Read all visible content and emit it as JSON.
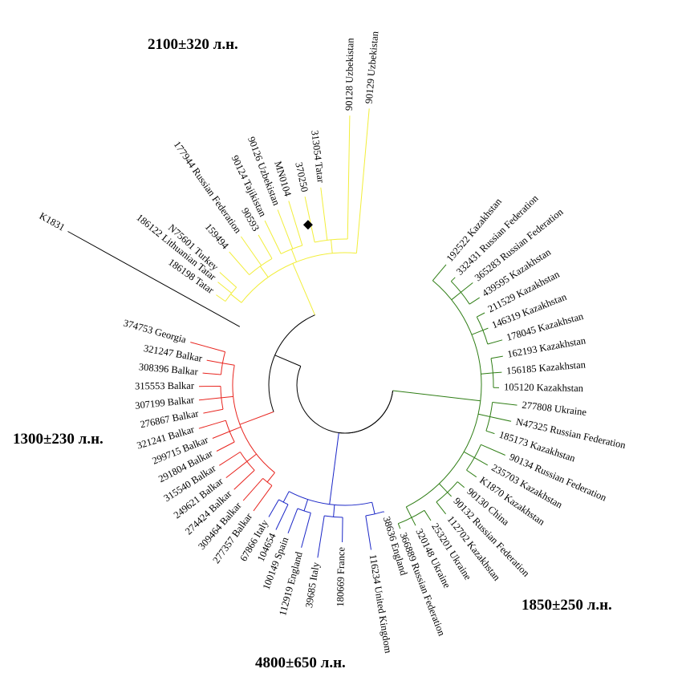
{
  "colors": {
    "background": "#ffffff",
    "root": "#000000",
    "yellow_clade": "#f2ee3a",
    "red_clade": "#e8251f",
    "green_clade": "#2e7d14",
    "blue_clade": "#1b27c7"
  },
  "dates": {
    "yellow": "2100±320 л.н.",
    "red": "1300±230 л.н.",
    "green": "1850±250 л.н.",
    "blue": "4800±650 л.н."
  },
  "marker": "diamond",
  "clades": {
    "outgroup": [
      "K1831"
    ],
    "yellow": [
      "186198 Tatar",
      "186122 Lithuanian Tatar",
      "N75601 Turkey",
      "159494",
      "177944 Russian Federation",
      "90593",
      "90124 Tajikistan",
      "90126 Uzbekistan",
      "MN0104",
      "370250",
      "313054 Tatar",
      "90128 Uzbekistan",
      "90129 Uzbekistan"
    ],
    "red": [
      "374753 Georgia",
      "321247 Balkar",
      "308396 Balkar",
      "315553 Balkar",
      "307199 Balkar",
      "276867 Balkar",
      "321241 Balkar",
      "299715 Balkar",
      "291804 Balkar",
      "315540 Balkar",
      "249621 Balkar",
      "274424 Balkar",
      "309464 Balkar",
      "277357 Balkar"
    ],
    "blue": [
      "67866 Italy",
      "104654",
      "100149 Spain",
      "112919 England",
      "39685 Italy",
      "180669 France",
      "116234 United Kingdom",
      "38636 England"
    ],
    "green": [
      "366889 Russian Federation",
      "320148 Ukraine",
      "253201 Ukraine",
      "112702 Kazakhstan",
      "90132 Russian Federation",
      "90130 China",
      "K1870 Kazakhstan",
      "235703 Kazakhstan",
      "90134 Russian Federation",
      "185173 Kazakhstan",
      "N47325 Russian Federation",
      "277808 Ukraine",
      "105120 Kazakhstan",
      "156185 Kazakhstan",
      "162193 Kazakhstan",
      "178045 Kazakhstan",
      "146319 Kazakhstan",
      "211529 Kazakhstan",
      "439595 Kazakhstan",
      "365283 Russian Federation",
      "332431 Russian Federation",
      "192522 Kazakhstan"
    ]
  }
}
